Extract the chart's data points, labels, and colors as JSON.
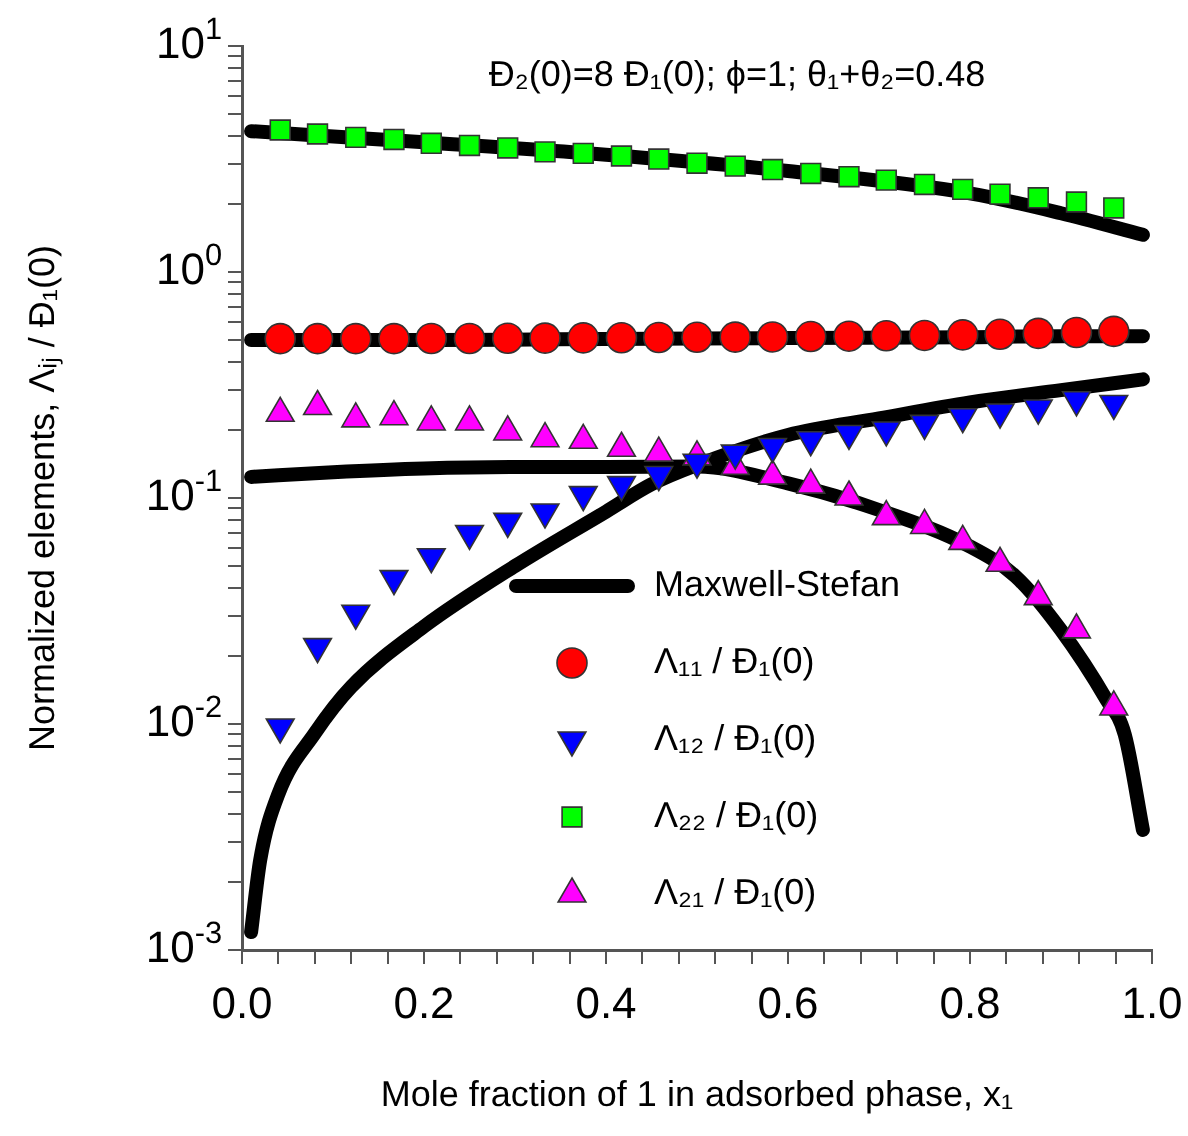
{
  "chart_data": {
    "type": "scatter",
    "xlabel": "Mole fraction of 1 in adsorbed phase, x₁",
    "ylabel": "Normalized elements, Λᵢⱼ / Đ₁(0)",
    "annotations": [
      "Đ₂(0)=8 Đ₁(0); ϕ=1; θ₁+θ₂=0.48"
    ],
    "log": "y",
    "grid": false,
    "legend": "bottom right",
    "xlim": [
      0,
      1
    ],
    "xticks": [
      {
        "value": 0,
        "label": "0.0"
      },
      {
        "value": 0.04,
        "label": null
      },
      {
        "value": 0.08,
        "label": null
      },
      {
        "value": 0.12,
        "label": null
      },
      {
        "value": 0.16,
        "label": null
      },
      {
        "value": 0.2,
        "label": "0.2"
      },
      {
        "value": 0.24,
        "label": null
      },
      {
        "value": 0.28,
        "label": null
      },
      {
        "value": 0.32,
        "label": null
      },
      {
        "value": 0.36,
        "label": null
      },
      {
        "value": 0.4,
        "label": "0.4"
      },
      {
        "value": 0.44,
        "label": null
      },
      {
        "value": 0.48,
        "label": null
      },
      {
        "value": 0.52,
        "label": null
      },
      {
        "value": 0.56,
        "label": null
      },
      {
        "value": 0.6,
        "label": "0.6"
      },
      {
        "value": 0.64,
        "label": null
      },
      {
        "value": 0.68,
        "label": null
      },
      {
        "value": 0.72,
        "label": null
      },
      {
        "value": 0.76,
        "label": null
      },
      {
        "value": 0.8,
        "label": "0.8"
      },
      {
        "value": 0.84,
        "label": null
      },
      {
        "value": 0.88,
        "label": null
      },
      {
        "value": 0.92,
        "label": null
      },
      {
        "value": 0.96,
        "label": null
      },
      {
        "value": 1,
        "label": "1.0"
      }
    ],
    "ylim": [
      0.001,
      10
    ],
    "yticks": [
      {
        "value": 0.001,
        "label": "10$^{-3}$"
      },
      {
        "value": 0.002,
        "label": null
      },
      {
        "value": 0.003,
        "label": null
      },
      {
        "value": 0.004,
        "label": null
      },
      {
        "value": 0.005,
        "label": null
      },
      {
        "value": 0.006,
        "label": null
      },
      {
        "value": 0.007,
        "label": null
      },
      {
        "value": 0.008,
        "label": null
      },
      {
        "value": 0.009,
        "label": null
      },
      {
        "value": 0.01,
        "label": "10$^{-2}$"
      },
      {
        "value": 0.02,
        "label": null
      },
      {
        "value": 0.03,
        "label": null
      },
      {
        "value": 0.04,
        "label": null
      },
      {
        "value": 0.05,
        "label": null
      },
      {
        "value": 0.06,
        "label": null
      },
      {
        "value": 0.07,
        "label": null
      },
      {
        "value": 0.08,
        "label": null
      },
      {
        "value": 0.09,
        "label": null
      },
      {
        "value": 0.1,
        "label": "10$^{-1}$"
      },
      {
        "value": 0.2,
        "label": null
      },
      {
        "value": 0.3,
        "label": null
      },
      {
        "value": 0.4,
        "label": null
      },
      {
        "value": 0.5,
        "label": null
      },
      {
        "value": 0.6,
        "label": null
      },
      {
        "value": 0.7,
        "label": null
      },
      {
        "value": 0.8,
        "label": null
      },
      {
        "value": 0.9,
        "label": null
      },
      {
        "value": 1,
        "label": "10$^{0}$"
      },
      {
        "value": 2,
        "label": null
      },
      {
        "value": 3,
        "label": null
      },
      {
        "value": 4,
        "label": null
      },
      {
        "value": 5,
        "label": null
      },
      {
        "value": 6,
        "label": null
      },
      {
        "value": 7,
        "label": null
      },
      {
        "value": 8,
        "label": null
      },
      {
        "value": 9,
        "label": null
      },
      {
        "value": 10,
        "label": "10$^{1}$"
      }
    ],
    "series": [
      {
        "name": "Maxwell-Stefan",
        "type": "line",
        "color": "#000000",
        "marker": "none",
        "x": [
          0.01,
          0.2,
          0.4,
          0.6,
          0.8,
          0.9,
          0.99
        ],
        "values": [
          0.5,
          0.5,
          0.505,
          0.51,
          0.515,
          0.52,
          0.52
        ]
      },
      {
        "type": "line",
        "color": "#000000",
        "marker": "none",
        "x": [
          0.01,
          0.2,
          0.4,
          0.6,
          0.8,
          0.9,
          0.99
        ],
        "values": [
          4.2,
          3.75,
          3.3,
          2.8,
          2.23,
          1.82,
          1.46
        ]
      },
      {
        "type": "line",
        "color": "#000000",
        "marker": "none",
        "x": [
          0.01,
          0.02,
          0.04,
          0.08,
          0.12,
          0.2,
          0.3,
          0.4,
          0.45,
          0.5,
          0.6,
          0.7,
          0.8,
          0.9,
          0.99
        ],
        "values": [
          0.0012,
          0.0025,
          0.0049,
          0.0091,
          0.0146,
          0.027,
          0.05,
          0.087,
          0.115,
          0.14,
          0.19,
          0.225,
          0.265,
          0.3,
          0.335
        ]
      },
      {
        "type": "line",
        "color": "#000000",
        "marker": "none",
        "x": [
          0.01,
          0.1,
          0.2,
          0.3,
          0.4,
          0.5,
          0.6,
          0.7,
          0.8,
          0.85,
          0.9,
          0.95,
          0.97,
          0.99
        ],
        "values": [
          0.124,
          0.13,
          0.135,
          0.137,
          0.137,
          0.138,
          0.116,
          0.0885,
          0.061,
          0.045,
          0.026,
          0.0128,
          0.009,
          0.0034
        ]
      },
      {
        "name": "Λ₁₁ / Đ₁(0)",
        "type": "scatter",
        "color": "#ff0000",
        "marker": "circle",
        "x": [
          0.042,
          0.083,
          0.125,
          0.167,
          0.208,
          0.25,
          0.292,
          0.333,
          0.375,
          0.417,
          0.458,
          0.5,
          0.542,
          0.583,
          0.625,
          0.667,
          0.708,
          0.75,
          0.792,
          0.833,
          0.875,
          0.917,
          0.958
        ],
        "values": [
          0.507,
          0.507,
          0.507,
          0.507,
          0.508,
          0.508,
          0.509,
          0.51,
          0.511,
          0.512,
          0.513,
          0.514,
          0.515,
          0.516,
          0.518,
          0.52,
          0.522,
          0.524,
          0.527,
          0.53,
          0.535,
          0.54,
          0.546
        ]
      },
      {
        "name": "Λ₁₂ / Đ₁(0)",
        "type": "scatter",
        "color": "#0000ff",
        "marker": "triangle_down",
        "x": [
          0.042,
          0.083,
          0.125,
          0.167,
          0.208,
          0.25,
          0.292,
          0.333,
          0.375,
          0.417,
          0.458,
          0.5,
          0.542,
          0.583,
          0.625,
          0.667,
          0.708,
          0.75,
          0.792,
          0.833,
          0.875,
          0.917,
          0.958
        ],
        "values": [
          0.0097,
          0.022,
          0.0309,
          0.044,
          0.055,
          0.0697,
          0.0788,
          0.0867,
          0.1035,
          0.1146,
          0.127,
          0.144,
          0.158,
          0.169,
          0.181,
          0.193,
          0.2,
          0.214,
          0.229,
          0.24,
          0.25,
          0.272,
          0.262
        ]
      },
      {
        "name": "Λ₂₂ / Đ₁(0)",
        "type": "scatter",
        "color": "#00ff00",
        "marker": "square",
        "x": [
          0.042,
          0.083,
          0.125,
          0.167,
          0.208,
          0.25,
          0.292,
          0.333,
          0.375,
          0.417,
          0.458,
          0.5,
          0.542,
          0.583,
          0.625,
          0.667,
          0.708,
          0.75,
          0.792,
          0.833,
          0.875,
          0.917,
          0.958
        ],
        "values": [
          4.25,
          4.08,
          3.94,
          3.86,
          3.71,
          3.63,
          3.54,
          3.4,
          3.35,
          3.26,
          3.16,
          3.03,
          2.94,
          2.84,
          2.73,
          2.64,
          2.55,
          2.44,
          2.32,
          2.21,
          2.13,
          2.04,
          1.92
        ]
      },
      {
        "name": "Λ₂₁ / Đ₁(0)",
        "type": "scatter",
        "color": "#ff00ff",
        "marker": "triangle",
        "x": [
          0.042,
          0.083,
          0.125,
          0.167,
          0.208,
          0.25,
          0.292,
          0.333,
          0.375,
          0.417,
          0.458,
          0.5,
          0.542,
          0.583,
          0.625,
          0.667,
          0.708,
          0.75,
          0.792,
          0.833,
          0.875,
          0.917,
          0.958
        ],
        "values": [
          0.237,
          0.254,
          0.224,
          0.229,
          0.217,
          0.217,
          0.196,
          0.183,
          0.18,
          0.166,
          0.158,
          0.152,
          0.138,
          0.125,
          0.114,
          0.101,
          0.0827,
          0.0756,
          0.0643,
          0.0514,
          0.0366,
          0.0261,
          0.0119
        ]
      }
    ]
  }
}
